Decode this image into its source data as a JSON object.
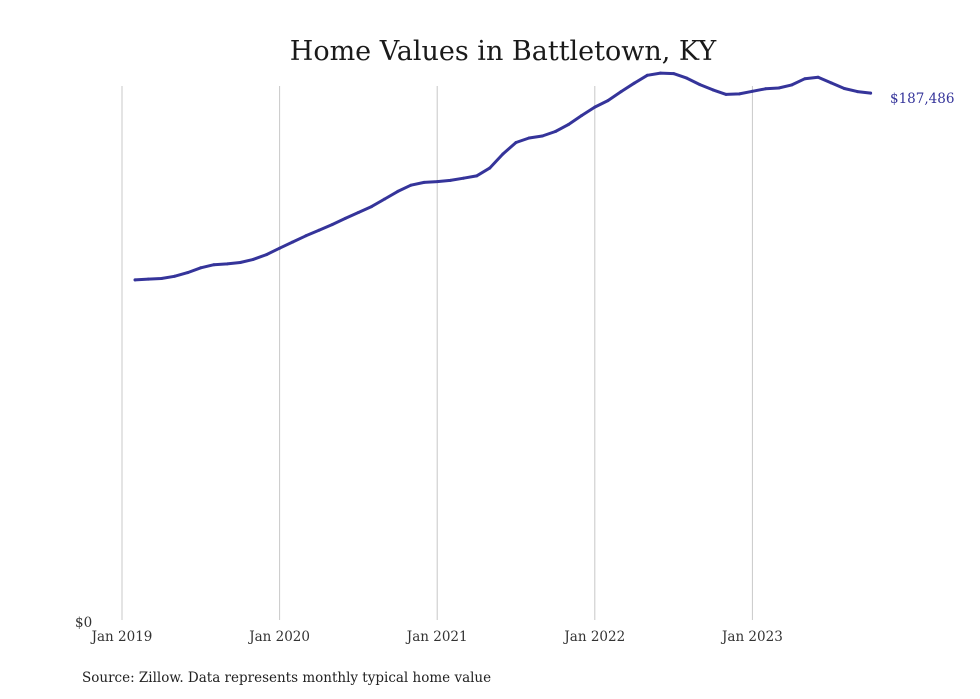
{
  "chart_data": {
    "type": "line",
    "title": "Home Values in Battletown, KY",
    "y_zero_label": "$0",
    "ylim": [
      0,
      190000
    ],
    "x_ticks": [
      {
        "label": "Jan 2019",
        "x": "2019-01"
      },
      {
        "label": "Jan 2020",
        "x": "2020-01"
      },
      {
        "label": "Jan 2021",
        "x": "2021-01"
      },
      {
        "label": "Jan 2022",
        "x": "2022-01"
      },
      {
        "label": "Jan 2023",
        "x": "2023-01"
      }
    ],
    "xlim": [
      "2019-01",
      "2023-12"
    ],
    "grid": "vertical",
    "colors": {
      "line": "#35349a"
    },
    "series": [
      {
        "x": [
          "2019-02",
          "2019-03",
          "2019-04",
          "2019-05",
          "2019-06",
          "2019-07",
          "2019-08",
          "2019-09",
          "2019-10",
          "2019-11",
          "2019-12",
          "2020-01",
          "2020-02",
          "2020-03",
          "2020-04",
          "2020-05",
          "2020-06",
          "2020-07",
          "2020-08",
          "2020-09",
          "2020-10",
          "2020-11",
          "2020-12",
          "2021-01",
          "2021-02",
          "2021-03",
          "2021-04",
          "2021-05",
          "2021-06",
          "2021-07",
          "2021-08",
          "2021-09",
          "2021-10",
          "2021-11",
          "2021-12",
          "2022-01",
          "2022-02",
          "2022-03",
          "2022-04",
          "2022-05",
          "2022-06",
          "2022-07",
          "2022-08",
          "2022-09",
          "2022-10",
          "2022-11",
          "2022-12",
          "2023-01",
          "2023-02",
          "2023-03",
          "2023-04",
          "2023-05",
          "2023-06",
          "2023-07",
          "2023-08",
          "2023-09",
          "2023-10"
        ],
        "values": [
          121000,
          121300,
          121500,
          122300,
          123600,
          125300,
          126400,
          126700,
          127200,
          128300,
          130000,
          132300,
          134500,
          136700,
          138700,
          140700,
          142900,
          145000,
          147100,
          149800,
          152500,
          154700,
          155700,
          156000,
          156400,
          157200,
          158000,
          160800,
          165800,
          169900,
          171500,
          172200,
          173800,
          176300,
          179500,
          182500,
          184800,
          188000,
          191000,
          193800,
          194600,
          194400,
          192800,
          190500,
          188600,
          187000,
          187200,
          188100,
          189000,
          189300,
          190400,
          192600,
          193100,
          191100,
          189100,
          188000,
          187486
        ]
      }
    ],
    "end_label": "$187,486",
    "source": "Source: Zillow. Data represents monthly typical home value"
  }
}
